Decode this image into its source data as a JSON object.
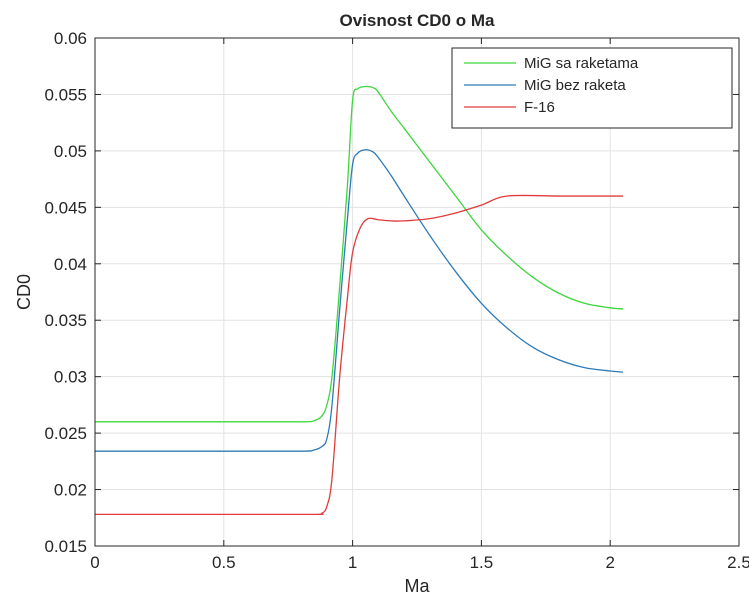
{
  "chart_data": {
    "type": "line",
    "title": "Ovisnost CD0 o Ma",
    "xlabel": "Ma",
    "ylabel": "CD0",
    "xlim": [
      0,
      2.5
    ],
    "ylim": [
      0.015,
      0.06
    ],
    "xticks": [
      0,
      0.5,
      1,
      1.5,
      2,
      2.5
    ],
    "xtick_labels": [
      "0",
      "0.5",
      "1",
      "1.5",
      "2",
      "2.5"
    ],
    "yticks": [
      0.015,
      0.02,
      0.025,
      0.03,
      0.035,
      0.04,
      0.045,
      0.05,
      0.055,
      0.06
    ],
    "ytick_labels": [
      "0.015",
      "0.02",
      "0.025",
      "0.03",
      "0.035",
      "0.04",
      "0.045",
      "0.05",
      "0.055",
      "0.06"
    ],
    "grid": true,
    "legend_position": "top-right",
    "series": [
      {
        "name": "MiG sa raketama",
        "color": "#3ed63e",
        "x": [
          0,
          0.5,
          0.8,
          0.85,
          0.88,
          0.9,
          0.92,
          0.95,
          0.98,
          1.0,
          1.02,
          1.05,
          1.08,
          1.1,
          1.15,
          1.2,
          1.3,
          1.4,
          1.5,
          1.6,
          1.7,
          1.8,
          1.9,
          2.0,
          2.05
        ],
        "y": [
          0.026,
          0.026,
          0.026,
          0.0261,
          0.0265,
          0.0275,
          0.03,
          0.038,
          0.047,
          0.0545,
          0.0555,
          0.0557,
          0.0556,
          0.0552,
          0.0535,
          0.052,
          0.049,
          0.046,
          0.043,
          0.0407,
          0.0388,
          0.0374,
          0.0365,
          0.0361,
          0.036
        ]
      },
      {
        "name": "MiG bez raketa",
        "color": "#2c7ab8",
        "x": [
          0,
          0.5,
          0.8,
          0.85,
          0.88,
          0.9,
          0.92,
          0.95,
          0.98,
          1.0,
          1.02,
          1.05,
          1.08,
          1.1,
          1.15,
          1.2,
          1.3,
          1.4,
          1.5,
          1.6,
          1.7,
          1.8,
          1.9,
          2.0,
          2.05
        ],
        "y": [
          0.0234,
          0.0234,
          0.0234,
          0.0235,
          0.0238,
          0.0245,
          0.0275,
          0.036,
          0.044,
          0.0488,
          0.0498,
          0.0501,
          0.0499,
          0.0494,
          0.0478,
          0.046,
          0.0425,
          0.0393,
          0.0365,
          0.0343,
          0.0326,
          0.0315,
          0.0308,
          0.0305,
          0.0304
        ]
      },
      {
        "name": "F-16",
        "color": "#e03c3c",
        "x": [
          0,
          0.5,
          0.85,
          0.88,
          0.9,
          0.92,
          0.95,
          0.98,
          1.0,
          1.03,
          1.06,
          1.1,
          1.15,
          1.2,
          1.3,
          1.4,
          1.5,
          1.6,
          1.8,
          2.0,
          2.05
        ],
        "y": [
          0.0178,
          0.0178,
          0.0178,
          0.0179,
          0.0185,
          0.021,
          0.03,
          0.037,
          0.041,
          0.0432,
          0.044,
          0.0439,
          0.0438,
          0.0438,
          0.044,
          0.0445,
          0.0452,
          0.046,
          0.046,
          0.046,
          0.046
        ]
      }
    ]
  }
}
